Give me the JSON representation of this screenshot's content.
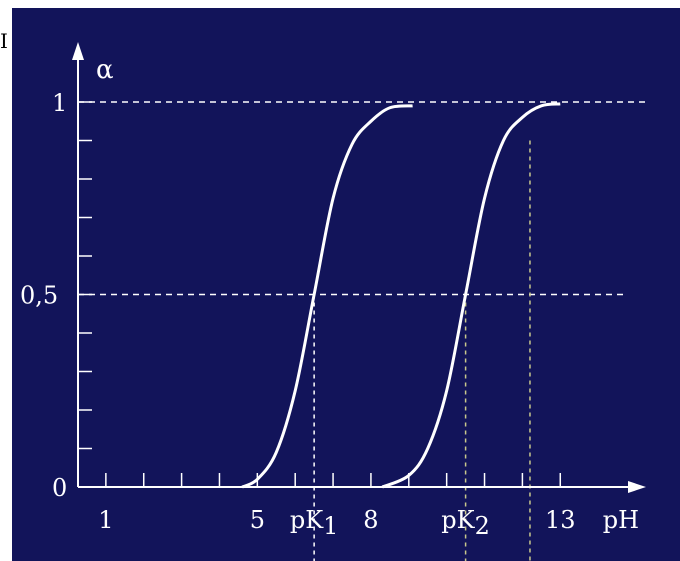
{
  "corner_fragment": "I",
  "chart_data": {
    "type": "line",
    "title": "",
    "xlabel": "pH",
    "ylabel": "α",
    "xlim": [
      0,
      15
    ],
    "ylim": [
      0,
      1
    ],
    "x_ticks": [
      1,
      2,
      3,
      4,
      5,
      6,
      7,
      8,
      9,
      10,
      11,
      12,
      13
    ],
    "x_tick_labels": [
      {
        "x": 1,
        "text": "1"
      },
      {
        "x": 5,
        "text": "5"
      },
      {
        "x": 6.5,
        "text": "pK",
        "sub": "1"
      },
      {
        "x": 8,
        "text": "8"
      },
      {
        "x": 10.5,
        "text": "pK",
        "sub": "2"
      },
      {
        "x": 13,
        "text": "13"
      },
      {
        "x": 14.6,
        "text": "pH"
      }
    ],
    "y_ticks": [
      0,
      0.1,
      0.2,
      0.3,
      0.4,
      0.5,
      0.6,
      0.7,
      0.8,
      0.9,
      1
    ],
    "y_tick_labels": [
      {
        "y": 0,
        "text": "0"
      },
      {
        "y": 0.5,
        "text": "0,5"
      },
      {
        "y": 1,
        "text": "1"
      }
    ],
    "series": [
      {
        "x": [
          4.6,
          5.0,
          5.5,
          6.0,
          6.5,
          7.0,
          7.5,
          8.0,
          8.5,
          9.1
        ],
        "y": [
          0.0,
          0.02,
          0.09,
          0.25,
          0.5,
          0.75,
          0.89,
          0.95,
          0.985,
          0.99
        ]
      },
      {
        "x": [
          8.3,
          9.0,
          9.5,
          10.0,
          10.5,
          11.0,
          11.5,
          12.0,
          12.5,
          13.0
        ],
        "y": [
          0.0,
          0.03,
          0.1,
          0.25,
          0.5,
          0.75,
          0.9,
          0.96,
          0.99,
          0.995
        ]
      }
    ],
    "reference_lines": {
      "horizontal": [
        0.5,
        1
      ],
      "vertical": [
        6.5,
        10.5,
        12.2
      ]
    },
    "colors": {
      "background": "#12145a",
      "curve": "#ffffff",
      "axis": "#ffffff",
      "grid": "#ffffff",
      "marker_line": "#c8c88c"
    }
  }
}
